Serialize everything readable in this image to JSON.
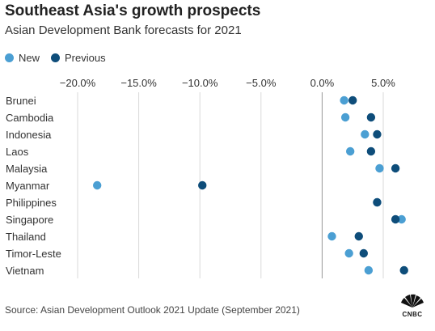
{
  "title": "Southeast Asia's growth prospects",
  "subtitle": "Asian Development Bank forecasts for 2021",
  "source": "Source: Asian Development Outlook 2021 Update (September 2021)",
  "brand": "CNBC",
  "colors": {
    "new": "#4b9fd3",
    "previous": "#0e4d7a",
    "grid": "#d9d9d9",
    "zero": "#999999"
  },
  "legend": [
    {
      "label": "New",
      "color": "#4b9fd3"
    },
    {
      "label": "Previous",
      "color": "#0e4d7a"
    }
  ],
  "chart_data": {
    "type": "scatter",
    "orientation": "horizontal-dot-plot",
    "categories": [
      "Brunei",
      "Cambodia",
      "Indonesia",
      "Laos",
      "Malaysia",
      "Myanmar",
      "Philippines",
      "Singapore",
      "Thailand",
      "Timor-Leste",
      "Vietnam"
    ],
    "series": [
      {
        "name": "New",
        "values": [
          1.8,
          1.9,
          3.5,
          2.3,
          4.7,
          -18.4,
          4.5,
          6.5,
          0.8,
          2.2,
          3.8
        ]
      },
      {
        "name": "Previous",
        "values": [
          2.5,
          4.0,
          4.5,
          4.0,
          6.0,
          -9.8,
          4.5,
          6.0,
          3.0,
          3.4,
          6.7
        ]
      }
    ],
    "xlim": [
      -22,
      7
    ],
    "xticks": [
      -20,
      -15,
      -10,
      -5,
      0,
      5
    ],
    "xtick_labels": [
      "−20.0%",
      "−15.0%",
      "−10.0%",
      "−5.0%",
      "0.0%",
      "5.0%"
    ],
    "grid": true,
    "legend_position": "top-left"
  }
}
